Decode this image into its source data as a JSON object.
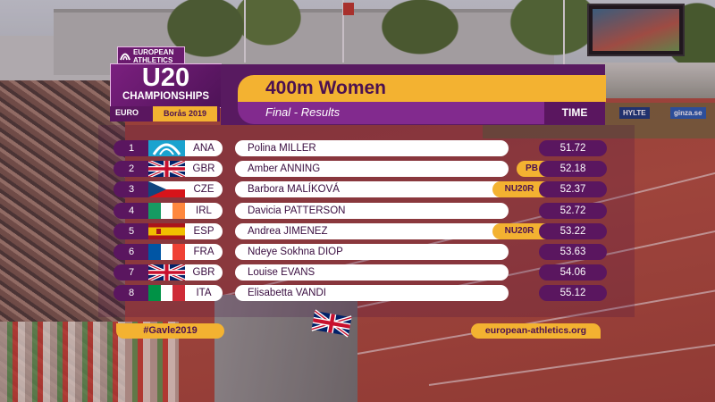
{
  "colors": {
    "purple_dark": "#581a60",
    "purple_mid": "#822a8e",
    "yellow": "#f3b231",
    "white": "#ffffff"
  },
  "logo": {
    "org_line1": "EUROPEAN",
    "org_line2": "ATHLETICS",
    "u20": "U20",
    "championships": "CHAMPIONSHIPS",
    "bottom_left": "EURO",
    "city": "Borås 2019"
  },
  "header": {
    "title": "400m Women",
    "subtitle": "Final - Results",
    "time_label": "TIME"
  },
  "results": [
    {
      "place": "1",
      "nat": "ANA",
      "flag": "ana-flag-icon",
      "name": "Polina MILLER",
      "badge": "",
      "time": "51.72"
    },
    {
      "place": "2",
      "nat": "GBR",
      "flag": "gbr-flag-icon",
      "name": "Amber ANNING",
      "badge": "PB",
      "time": "52.18"
    },
    {
      "place": "3",
      "nat": "CZE",
      "flag": "cze-flag-icon",
      "name": "Barbora MALÍKOVÁ",
      "badge": "NU20R",
      "time": "52.37"
    },
    {
      "place": "4",
      "nat": "IRL",
      "flag": "irl-flag-icon",
      "name": "Davicia PATTERSON",
      "badge": "",
      "time": "52.72"
    },
    {
      "place": "5",
      "nat": "ESP",
      "flag": "esp-flag-icon",
      "name": "Andrea JIMENEZ",
      "badge": "NU20R",
      "time": "53.22"
    },
    {
      "place": "6",
      "nat": "FRA",
      "flag": "fra-flag-icon",
      "name": "Ndeye Sokhna DIOP",
      "badge": "",
      "time": "53.63"
    },
    {
      "place": "7",
      "nat": "GBR",
      "flag": "gbr-flag-icon",
      "name": "Louise EVANS",
      "badge": "",
      "time": "54.06"
    },
    {
      "place": "8",
      "nat": "ITA",
      "flag": "ita-flag-icon",
      "name": "Elisabetta VANDI",
      "badge": "",
      "time": "55.12"
    }
  ],
  "footer": {
    "hashtag": "#Gavle2019",
    "website": "european-athletics.org"
  },
  "background": {
    "sponsor1": "HYLTE",
    "sponsor2": "ginza.se"
  }
}
